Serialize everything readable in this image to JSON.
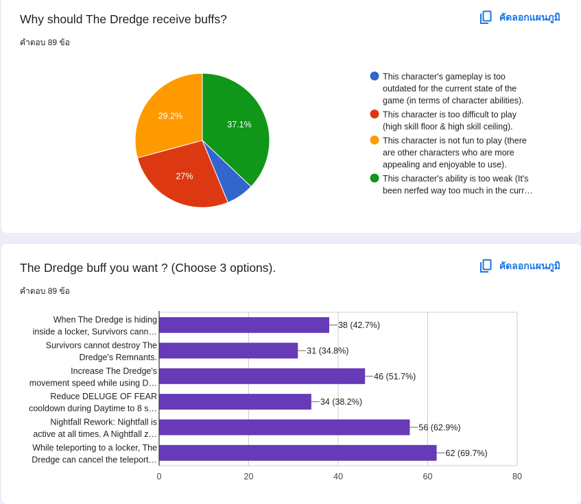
{
  "cards": [
    {
      "title": "Why should The Dredge receive buffs?",
      "response_count": "คำตอบ 89 ข้อ",
      "copy_label": "คัดลอกแผนภูมิ"
    },
    {
      "title": "The Dredge buff you want ? (Choose 3 options).",
      "response_count": "คำตอบ 89 ข้อ",
      "copy_label": "คัดลอกแผนภูมิ"
    }
  ],
  "colors": {
    "blue": "#3366cc",
    "red": "#dc3912",
    "orange": "#ff9900",
    "green": "#109618",
    "bar": "#673ab7",
    "accent": "#1a73e8"
  },
  "icons": {
    "copy": "copy-chart-icon"
  },
  "chart_data": [
    {
      "type": "pie",
      "slices": [
        {
          "label_lines": [
            "This character's gameplay is too",
            "outdated for the current state of the",
            "game (in terms of character abilities)."
          ],
          "value": 6.7,
          "shown_label": "",
          "color": "#3366cc"
        },
        {
          "label_lines": [
            "This character is too difficult to play",
            "(high skill floor & high skill ceiling)."
          ],
          "value": 27.0,
          "shown_label": "27%",
          "color": "#dc3912"
        },
        {
          "label_lines": [
            "This character is not fun to play (there",
            "are other characters who are more",
            "appealing and enjoyable to use)."
          ],
          "value": 29.2,
          "shown_label": "29.2%",
          "color": "#ff9900"
        },
        {
          "label_lines": [
            "This character's ability is too weak (It's",
            "been nerfed way too much in the curr…"
          ],
          "value": 37.1,
          "shown_label": "37.1%",
          "color": "#109618"
        }
      ],
      "legend_position": "right"
    },
    {
      "type": "bar",
      "orientation": "horizontal",
      "categories": [
        [
          "When The Dredge is hiding",
          "inside a locker, Survivors cann…"
        ],
        [
          "Survivors cannot destroy The",
          "Dredge's Remnants."
        ],
        [
          "Increase The Dredge's",
          "movement speed while using D…"
        ],
        [
          "Reduce DELUGE OF FEAR",
          "cooldown during Daytime to 8 s…"
        ],
        [
          "Nightfall Rework: Nightfall is",
          "active at all times. A Nightfall z…"
        ],
        [
          "While teleporting to a locker, The",
          "Dredge can cancel the teleport…"
        ]
      ],
      "values": [
        38,
        31,
        46,
        34,
        56,
        62
      ],
      "data_labels": [
        "38 (42.7%)",
        "31 (34.8%)",
        "46 (51.7%)",
        "34 (38.2%)",
        "56 (62.9%)",
        "62 (69.7%)"
      ],
      "xlim": [
        0,
        80
      ],
      "xticks": [
        0,
        20,
        40,
        60,
        80
      ],
      "grid": true
    }
  ]
}
